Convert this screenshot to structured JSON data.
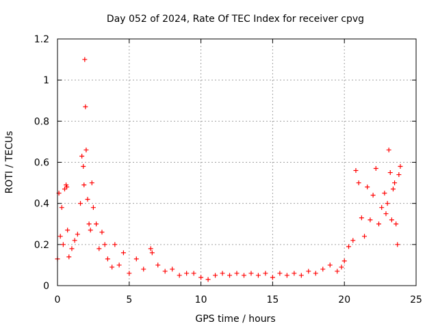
{
  "chart_data": {
    "type": "scatter",
    "title": "Day 052 of 2024, Rate Of TEC Index for receiver cpvg",
    "xlabel": "GPS time / hours",
    "ylabel": "ROTI / TECUs",
    "xlim": [
      0,
      25
    ],
    "ylim": [
      0,
      1.2
    ],
    "x_ticks": [
      0,
      5,
      10,
      15,
      20,
      25
    ],
    "y_ticks": [
      0,
      0.2,
      0.4,
      0.6,
      0.8,
      1,
      1.2
    ],
    "x_tick_labels": [
      "0",
      "5",
      "10",
      "15",
      "20",
      "25"
    ],
    "y_tick_labels": [
      "0",
      "0.2",
      "0.4",
      "0.6",
      "0.8",
      "1",
      "1.2"
    ],
    "grid": true,
    "marker": "+",
    "marker_color": "#ff0000",
    "series": [
      {
        "name": "ROTI",
        "x": [
          0.0,
          0.1,
          0.2,
          0.3,
          0.4,
          0.5,
          0.6,
          0.65,
          0.7,
          0.8,
          1.0,
          1.2,
          1.4,
          1.6,
          1.7,
          1.8,
          1.85,
          1.9,
          1.95,
          2.0,
          2.1,
          2.2,
          2.3,
          2.4,
          2.5,
          2.7,
          2.9,
          3.1,
          3.3,
          3.5,
          3.8,
          4.0,
          4.3,
          4.6,
          5.0,
          5.5,
          6.0,
          6.5,
          6.6,
          7.0,
          7.5,
          8.0,
          8.5,
          9.0,
          9.5,
          10.0,
          10.5,
          11.0,
          11.5,
          12.0,
          12.5,
          13.0,
          13.5,
          14.0,
          14.5,
          15.0,
          15.5,
          16.0,
          16.5,
          17.0,
          17.5,
          18.0,
          18.5,
          19.0,
          19.5,
          19.8,
          20.0,
          20.3,
          20.6,
          20.8,
          21.0,
          21.2,
          21.4,
          21.6,
          21.8,
          22.0,
          22.2,
          22.4,
          22.6,
          22.8,
          22.9,
          23.0,
          23.1,
          23.2,
          23.3,
          23.4,
          23.5,
          23.6,
          23.7,
          23.8,
          23.9
        ],
        "y": [
          0.13,
          0.45,
          0.24,
          0.38,
          0.2,
          0.47,
          0.49,
          0.48,
          0.27,
          0.14,
          0.18,
          0.22,
          0.25,
          0.4,
          0.63,
          0.58,
          0.49,
          1.1,
          0.87,
          0.66,
          0.42,
          0.3,
          0.27,
          0.5,
          0.38,
          0.3,
          0.18,
          0.26,
          0.2,
          0.13,
          0.09,
          0.2,
          0.1,
          0.16,
          0.06,
          0.13,
          0.08,
          0.18,
          0.16,
          0.1,
          0.07,
          0.08,
          0.05,
          0.06,
          0.06,
          0.04,
          0.03,
          0.05,
          0.06,
          0.05,
          0.06,
          0.05,
          0.06,
          0.05,
          0.06,
          0.04,
          0.06,
          0.05,
          0.06,
          0.05,
          0.07,
          0.06,
          0.08,
          0.1,
          0.07,
          0.09,
          0.12,
          0.19,
          0.22,
          0.56,
          0.5,
          0.33,
          0.24,
          0.48,
          0.32,
          0.44,
          0.57,
          0.3,
          0.38,
          0.45,
          0.35,
          0.4,
          0.66,
          0.55,
          0.32,
          0.47,
          0.5,
          0.3,
          0.2,
          0.54,
          0.58
        ]
      }
    ]
  }
}
